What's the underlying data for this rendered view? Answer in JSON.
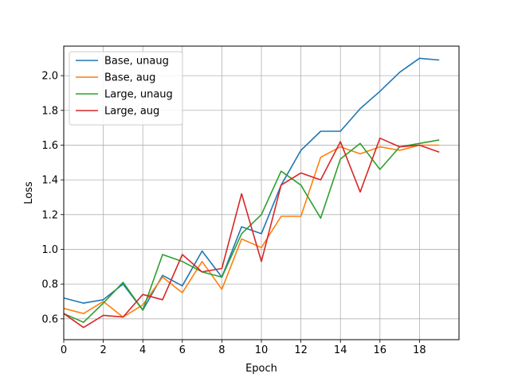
{
  "chart_data": {
    "type": "line",
    "title": "",
    "xlabel": "Epoch",
    "ylabel": "Loss",
    "xlim": [
      0,
      20
    ],
    "ylim": [
      0.48,
      2.17
    ],
    "xticks": [
      0,
      2,
      4,
      6,
      8,
      10,
      12,
      14,
      16,
      18
    ],
    "yticks": [
      0.6,
      0.8,
      1.0,
      1.2,
      1.4,
      1.6,
      1.8,
      2.0
    ],
    "grid": true,
    "legend_position": "top-left",
    "x": [
      0,
      1,
      2,
      3,
      4,
      5,
      6,
      7,
      8,
      9,
      10,
      11,
      12,
      13,
      14,
      15,
      16,
      17,
      18,
      19
    ],
    "series": [
      {
        "name": "Base, unaug",
        "color": "#1f77b4",
        "values": [
          0.72,
          0.69,
          0.71,
          0.8,
          0.65,
          0.85,
          0.79,
          0.99,
          0.84,
          1.13,
          1.09,
          1.37,
          1.57,
          1.68,
          1.68,
          1.81,
          1.91,
          2.02,
          2.1,
          2.09
        ]
      },
      {
        "name": "Base, aug",
        "color": "#ff7f0e",
        "values": [
          0.66,
          0.63,
          0.7,
          0.61,
          0.68,
          0.84,
          0.75,
          0.93,
          0.77,
          1.06,
          1.01,
          1.19,
          1.19,
          1.53,
          1.59,
          1.55,
          1.59,
          1.57,
          1.6,
          1.6
        ]
      },
      {
        "name": "Large, unaug",
        "color": "#2ca02c",
        "values": [
          0.63,
          0.58,
          0.69,
          0.81,
          0.65,
          0.97,
          0.93,
          0.87,
          0.84,
          1.09,
          1.2,
          1.45,
          1.37,
          1.18,
          1.52,
          1.61,
          1.46,
          1.59,
          1.61,
          1.63
        ]
      },
      {
        "name": "Large, aug",
        "color": "#d62728",
        "values": [
          0.63,
          0.55,
          0.62,
          0.61,
          0.74,
          0.71,
          0.97,
          0.87,
          0.89,
          1.32,
          0.93,
          1.37,
          1.44,
          1.4,
          1.62,
          1.33,
          1.64,
          1.59,
          1.6,
          1.56
        ]
      }
    ]
  }
}
